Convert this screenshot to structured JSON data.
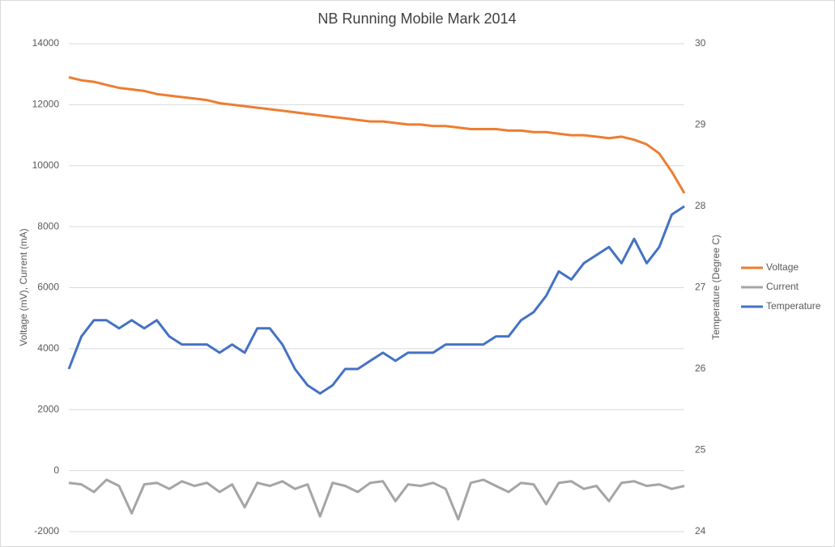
{
  "chart_data": {
    "type": "line",
    "title": "NB Running Mobile Mark 2014",
    "y_label": "Voltage (mV), Current (mA)",
    "y2_label": "Temperature (Degree C)",
    "ylim": [
      -2000,
      14000
    ],
    "yticks": [
      -2000,
      0,
      2000,
      4000,
      6000,
      8000,
      10000,
      12000,
      14000
    ],
    "y2lim": [
      24,
      30
    ],
    "y2ticks": [
      24,
      25,
      26,
      27,
      28,
      29,
      30
    ],
    "grid": true,
    "legend": "right",
    "series": [
      {
        "name": "Voltage",
        "color": "#ED7D31",
        "values": [
          12900,
          12800,
          12750,
          12650,
          12550,
          12500,
          12450,
          12350,
          12300,
          12250,
          12200,
          12150,
          12050,
          12000,
          11950,
          11900,
          11850,
          11800,
          11750,
          11700,
          11650,
          11600,
          11550,
          11500,
          11450,
          11450,
          11400,
          11350,
          11350,
          11300,
          11300,
          11250,
          11200,
          11200,
          11200,
          11150,
          11150,
          11100,
          11100,
          11050,
          11000,
          11000,
          10950,
          10900,
          10950,
          10850,
          10700,
          10400,
          9800,
          9100
        ]
      },
      {
        "name": "Current",
        "color": "#A5A5A5",
        "values": [
          -400,
          -450,
          -700,
          -300,
          -500,
          -1400,
          -450,
          -400,
          -600,
          -350,
          -500,
          -400,
          -700,
          -450,
          -1200,
          -400,
          -500,
          -350,
          -600,
          -450,
          -1500,
          -400,
          -500,
          -700,
          -400,
          -350,
          -1000,
          -450,
          -500,
          -400,
          -600,
          -1600,
          -400,
          -300,
          -500,
          -700,
          -400,
          -450,
          -1100,
          -400,
          -350,
          -600,
          -500,
          -1000,
          -400,
          -350,
          -500,
          -450,
          -600,
          -500
        ]
      },
      {
        "name": "Temperature",
        "color": "#4472C4",
        "axis": "y2",
        "values": [
          26.0,
          26.4,
          26.6,
          26.6,
          26.5,
          26.6,
          26.5,
          26.6,
          26.4,
          26.3,
          26.3,
          26.3,
          26.2,
          26.3,
          26.2,
          26.5,
          26.5,
          26.3,
          26.0,
          25.8,
          25.7,
          25.8,
          26.0,
          26.0,
          26.1,
          26.2,
          26.1,
          26.2,
          26.2,
          26.2,
          26.3,
          26.3,
          26.3,
          26.3,
          26.4,
          26.4,
          26.6,
          26.7,
          26.9,
          27.2,
          27.1,
          27.3,
          27.4,
          27.5,
          27.3,
          27.6,
          27.3,
          27.5,
          27.9,
          28.0
        ]
      }
    ]
  }
}
